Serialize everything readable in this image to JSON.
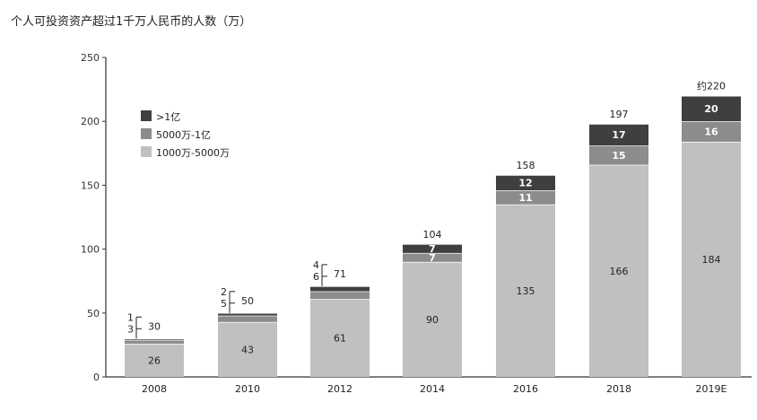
{
  "chart_data": {
    "type": "bar",
    "stacked": true,
    "title": "个人可投资资产超过1千万人民币的人数（万）",
    "categories": [
      "2008",
      "2010",
      "2012",
      "2014",
      "2016",
      "2018",
      "2019E"
    ],
    "series": [
      {
        "name": "1000万-5000万",
        "color": "#c0c0c0",
        "values": [
          26,
          43,
          61,
          90,
          135,
          166,
          184
        ]
      },
      {
        "name": "5000万-1亿",
        "color": "#8c8c8c",
        "values": [
          3,
          5,
          6,
          7,
          11,
          15,
          16
        ]
      },
      {
        "name": ">1亿",
        "color": "#3f3f3f",
        "values": [
          1,
          2,
          4,
          7,
          12,
          17,
          20
        ]
      }
    ],
    "totals": [
      "30",
      "50",
      "71",
      "104",
      "158",
      "197",
      "约220"
    ],
    "ylim": [
      0,
      250
    ],
    "yticks": [
      0,
      50,
      100,
      150,
      200,
      250
    ],
    "legend_position": "top-left",
    "grid": false
  }
}
